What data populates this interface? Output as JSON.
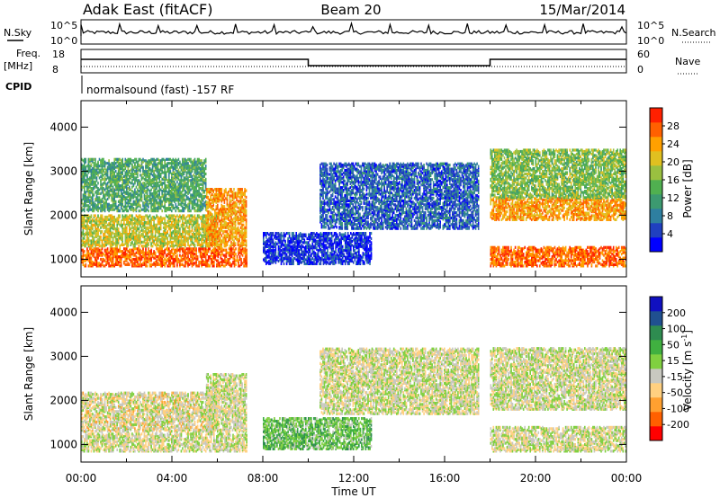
{
  "header": {
    "radar": "Adak East (fitACF)",
    "beam": "Beam 20",
    "date": "15/Mar/2014"
  },
  "status_panels": {
    "nsky_label": "N.Sky",
    "nsky_ticks": [
      "10^5",
      "10^0"
    ],
    "nsearch_label": "N.Search",
    "nsearch_ticks": [
      "10^5",
      "10^0"
    ],
    "freq_label": "Freq.",
    "freq_unit": "[MHz]",
    "freq_ticks": [
      "18",
      "8"
    ],
    "nave_label": "Nave",
    "nave_ticks": [
      "60",
      "0"
    ],
    "cpid_label": "CPID",
    "cpid_value": "normalsound (fast) -157 RF"
  },
  "colors": {
    "power_scale": [
      "#0000ff",
      "#2040c0",
      "#2e7fa0",
      "#3c9a70",
      "#50b050",
      "#9ac040",
      "#e0c020",
      "#ffa000",
      "#ff6000",
      "#ff2000"
    ],
    "velocity_scale": [
      "#ff0000",
      "#ff6000",
      "#ffa030",
      "#ffd080",
      "#c8c8c0",
      "#80d040",
      "#40b040",
      "#2e8c50",
      "#205090",
      "#1010c0"
    ]
  },
  "chart_data": [
    {
      "type": "heatmap",
      "name": "power",
      "ylabel": "Slant Range [km]",
      "yticks": [
        "1000",
        "2000",
        "3000",
        "4000"
      ],
      "ylim": [
        600,
        4600
      ],
      "xlim": [
        0,
        24
      ],
      "xticks": [
        "00:00",
        "04:00",
        "08:00",
        "12:00",
        "16:00",
        "20:00",
        "00:00"
      ],
      "colorbar": {
        "label": "Power [dB]",
        "ticks": [
          "4",
          "8",
          "12",
          "16",
          "20",
          "24",
          "28"
        ],
        "range": [
          0,
          32
        ]
      },
      "bands": [
        {
          "t0": 0.0,
          "t1": 7.3,
          "r0": 850,
          "r1": 1250,
          "level": 0.85
        },
        {
          "t0": 0.0,
          "t1": 6.0,
          "r0": 1300,
          "r1": 2000,
          "level": 0.6
        },
        {
          "t0": 0.0,
          "t1": 5.5,
          "r0": 2100,
          "r1": 3300,
          "level": 0.4
        },
        {
          "t0": 5.5,
          "t1": 7.3,
          "r0": 1300,
          "r1": 2600,
          "level": 0.75
        },
        {
          "t0": 8.0,
          "t1": 12.8,
          "r0": 900,
          "r1": 1600,
          "level": 0.12
        },
        {
          "t0": 10.5,
          "t1": 17.5,
          "r0": 1700,
          "r1": 3200,
          "level": 0.2
        },
        {
          "t0": 18.0,
          "t1": 24.0,
          "r0": 850,
          "r1": 1300,
          "level": 0.85
        },
        {
          "t0": 18.0,
          "t1": 24.0,
          "r0": 1900,
          "r1": 2400,
          "level": 0.75
        },
        {
          "t0": 18.0,
          "t1": 24.0,
          "r0": 2400,
          "r1": 3500,
          "level": 0.5
        }
      ]
    },
    {
      "type": "heatmap",
      "name": "velocity",
      "ylabel": "Slant Range [km]",
      "yticks": [
        "1000",
        "2000",
        "3000",
        "4000"
      ],
      "ylim": [
        600,
        4600
      ],
      "xlim": [
        0,
        24
      ],
      "xlabel": "Time UT",
      "xticks": [
        "00:00",
        "04:00",
        "08:00",
        "12:00",
        "16:00",
        "20:00",
        "00:00"
      ],
      "colorbar": {
        "label": "Velocity [m s",
        "label_sup": "-1",
        "label_end": "]",
        "ticks": [
          "-200",
          "-100",
          "-50",
          "-15",
          "15",
          "50",
          "100",
          "200"
        ]
      },
      "bands": [
        {
          "t0": 0.0,
          "t1": 7.3,
          "r0": 850,
          "r1": 1250,
          "level": 0.45
        },
        {
          "t0": 0.0,
          "t1": 6.0,
          "r0": 1300,
          "r1": 2200,
          "level": 0.42
        },
        {
          "t0": 5.5,
          "t1": 7.3,
          "r0": 1300,
          "r1": 2600,
          "level": 0.45
        },
        {
          "t0": 8.0,
          "t1": 12.8,
          "r0": 900,
          "r1": 1600,
          "level": 0.6
        },
        {
          "t0": 10.5,
          "t1": 17.5,
          "r0": 1700,
          "r1": 3200,
          "level": 0.45
        },
        {
          "t0": 18.0,
          "t1": 24.0,
          "r0": 850,
          "r1": 1400,
          "level": 0.45
        },
        {
          "t0": 18.0,
          "t1": 24.0,
          "r0": 1800,
          "r1": 3200,
          "level": 0.45
        }
      ]
    }
  ]
}
